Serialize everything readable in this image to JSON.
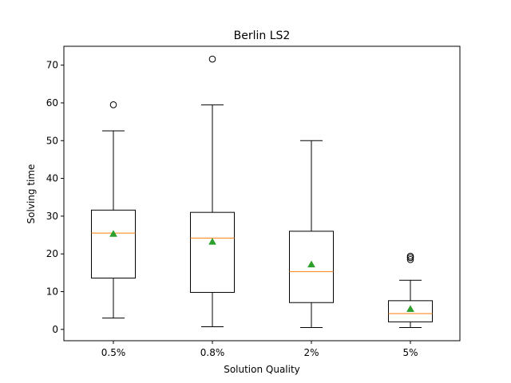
{
  "chart_data": {
    "type": "boxplot",
    "title": "Berlin LS2",
    "xlabel": "Solution Quality",
    "ylabel": "Solving time",
    "ylim": [
      -3,
      75
    ],
    "yticks": [
      0,
      10,
      20,
      30,
      40,
      50,
      60,
      70
    ],
    "grid": false,
    "categories": [
      "0.5%",
      "0.8%",
      "2%",
      "5%"
    ],
    "boxes": [
      {
        "category": "0.5%",
        "whisker_low": 3.0,
        "q1": 13.6,
        "median": 25.5,
        "q3": 31.6,
        "whisker_high": 52.6,
        "mean": 25.3,
        "outliers": [
          59.5
        ]
      },
      {
        "category": "0.8%",
        "whisker_low": 0.7,
        "q1": 9.8,
        "median": 24.2,
        "q3": 31.0,
        "whisker_high": 59.5,
        "mean": 23.2,
        "outliers": [
          71.6
        ]
      },
      {
        "category": "2%",
        "whisker_low": 0.5,
        "q1": 7.1,
        "median": 15.3,
        "q3": 26.0,
        "whisker_high": 50.0,
        "mean": 17.2,
        "outliers": []
      },
      {
        "category": "5%",
        "whisker_low": 0.5,
        "q1": 2.0,
        "median": 4.2,
        "q3": 7.6,
        "whisker_high": 13.0,
        "mean": 5.4,
        "outliers": [
          18.5,
          19.0,
          19.4
        ]
      }
    ],
    "colors": {
      "box": "#000000",
      "median": "#ff7f0e",
      "mean": "#2ca02c",
      "outlier": "#000000"
    }
  }
}
